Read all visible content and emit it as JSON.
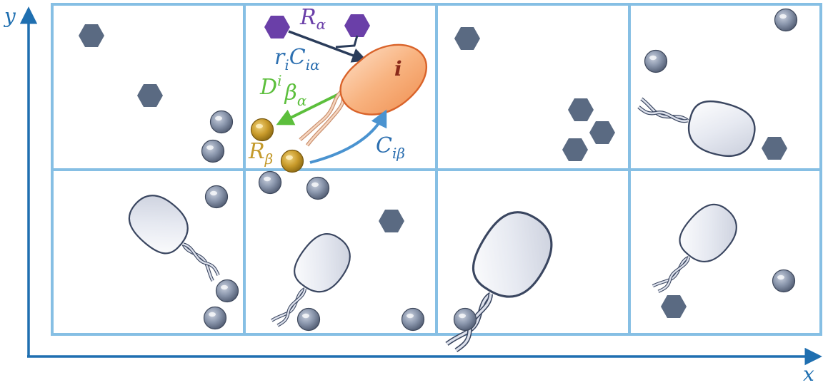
{
  "axes": {
    "x_label": "x",
    "y_label": "y"
  },
  "labels": {
    "resource_alpha": "R",
    "resource_alpha_sub": "α",
    "uptake_r": "r",
    "uptake_r_sub": "i",
    "uptake_C": "C",
    "uptake_C_sub": "iα",
    "secretion_D": "D",
    "secretion_D_sup": "i",
    "secretion_beta": "β",
    "secretion_beta_sub": "α",
    "resource_beta": "R",
    "resource_beta_sub": "β",
    "cross_C": "C",
    "cross_C_sub": "iβ",
    "cell_i": "i"
  },
  "colors": {
    "axis": "#1f6fb0",
    "grid": "#86bfe4",
    "hexagon": "#5a6a82",
    "sphere": "#7d8aa2",
    "alpha_purple": "#6a3fa8",
    "uptake_arrow": "#2a3c5a",
    "uptake_text": "#2c6fb0",
    "secretion_green": "#5cbf3c",
    "beta_gold": "#c49a2c",
    "cross_blue": "#4a93d0",
    "cell_orange": "#f29a5c",
    "cell_label": "#8a2a1a",
    "bacterium_fill": "#dde1ec",
    "bacterium_stroke": "#3a4660"
  }
}
